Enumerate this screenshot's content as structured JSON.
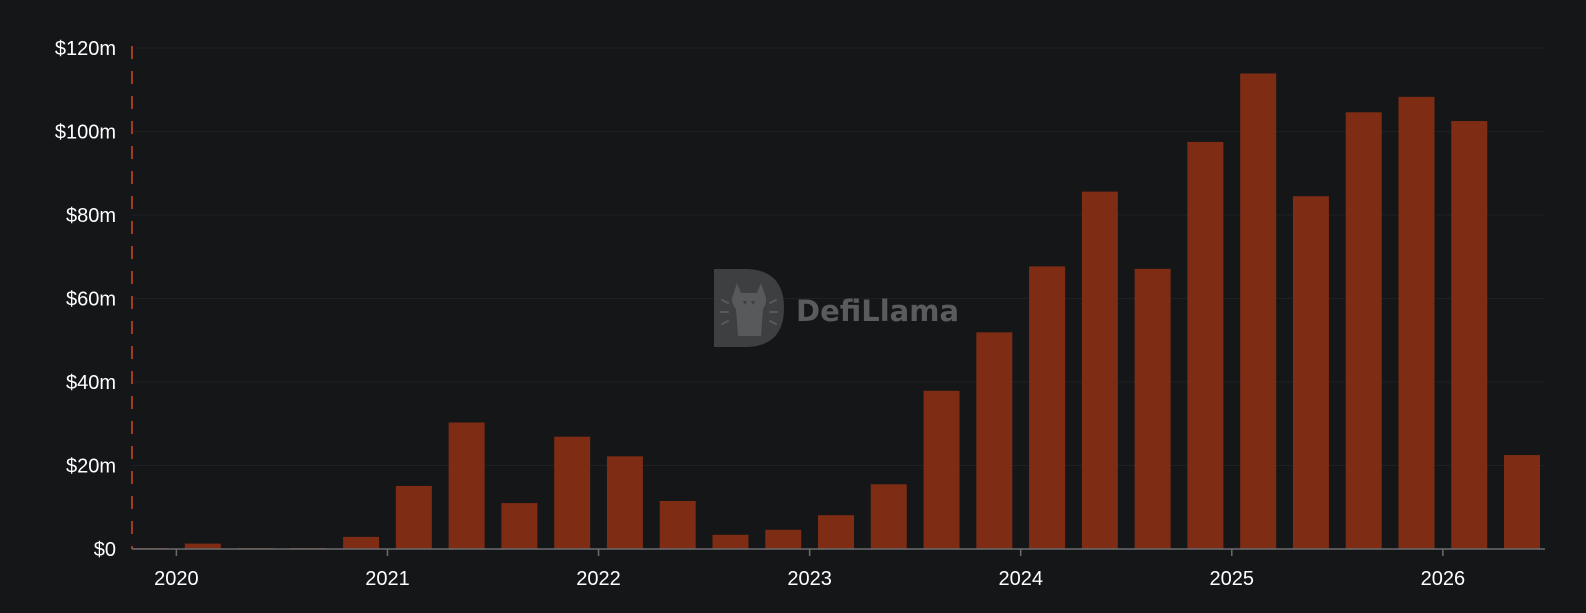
{
  "chart_data": {
    "type": "bar",
    "title": "",
    "xlabel": "",
    "ylabel": "",
    "ylim": [
      0,
      120
    ],
    "y_unit": "m",
    "y_ticks": [
      0,
      20,
      40,
      60,
      80,
      100,
      120
    ],
    "y_tick_labels": [
      "$0",
      "$20m",
      "$40m",
      "$60m",
      "$80m",
      "$100m",
      "$120m"
    ],
    "x_tick_labels": [
      "2020",
      "2021",
      "2022",
      "2023",
      "2024",
      "2025",
      "2026"
    ],
    "categories": [
      "2019-Q4",
      "2020-Q1",
      "2020-Q2",
      "2020-Q3",
      "2020-Q4",
      "2021-Q1",
      "2021-Q2",
      "2021-Q3",
      "2021-Q4",
      "2022-Q1",
      "2022-Q2",
      "2022-Q3",
      "2022-Q4",
      "2023-Q1",
      "2023-Q2",
      "2023-Q3",
      "2023-Q4",
      "2024-Q1",
      "2024-Q2",
      "2024-Q3",
      "2024-Q4",
      "2025-Q1",
      "2025-Q2",
      "2025-Q3",
      "2025-Q4",
      "2026-Q1",
      "2026-Q2"
    ],
    "values": [
      0.2,
      1.3,
      0.1,
      0.2,
      2.9,
      15.1,
      30.3,
      11.0,
      26.9,
      22.2,
      11.5,
      3.4,
      4.6,
      8.1,
      15.5,
      37.9,
      51.9,
      67.7,
      85.6,
      67.1,
      97.5,
      113.9,
      84.5,
      104.6,
      108.3,
      102.5,
      22.5
    ],
    "grid": true,
    "legend": "none",
    "bar_color": "#7e2c14",
    "axis_color": "#6b6c6f",
    "left_axis_dash_color": "#a33b1e"
  },
  "watermark": {
    "text": "DefiLlama",
    "icon": "defillama-logo-icon"
  }
}
